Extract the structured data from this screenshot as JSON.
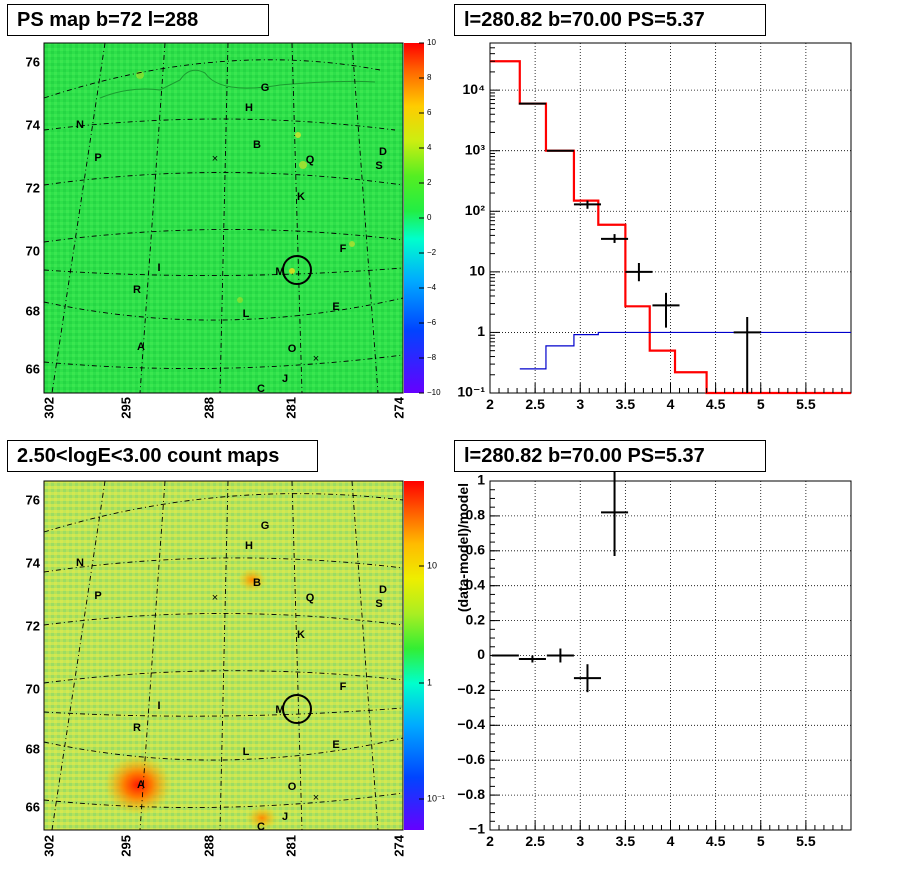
{
  "panels": {
    "ps_map_title": "PS map b=72 l=288",
    "spectrum_title": "l=280.82 b=70.00 PS=5.37",
    "count_map_title": "2.50<logE<3.00 count maps",
    "residual_title": "l=280.82 b=70.00 PS=5.37"
  },
  "colors": {
    "map_green": "#2ee04a",
    "count_yellow": "#bfe55a",
    "model_red": "#ff0000",
    "background_blue": "#0000cc",
    "data_black": "#000000"
  },
  "chart_data": [
    {
      "type": "heatmap",
      "title": "PS map b=72 l=288",
      "x_ticks": [
        "302",
        "295",
        "288",
        "281",
        "274"
      ],
      "y_ticks": [
        "76",
        "74",
        "72",
        "70",
        "68",
        "66"
      ],
      "colorbar_ticks": [
        "10",
        "8",
        "6",
        "4",
        "2",
        "0",
        "−2",
        "−4",
        "−6",
        "−8",
        "−10"
      ],
      "colorbar_range": [
        -10,
        10
      ],
      "source_labels": [
        "G",
        "H",
        "N",
        "B",
        "Q",
        "D",
        "P",
        "S",
        "K",
        "F",
        "I",
        "M",
        "R",
        "L",
        "E",
        "A",
        "O",
        "J",
        "C"
      ],
      "highlighted_source": "M"
    },
    {
      "type": "line",
      "title": "l=280.82 b=70.00 PS=5.37",
      "x_ticks": [
        "2",
        "2.5",
        "3",
        "3.5",
        "4",
        "4.5",
        "5",
        "5.5"
      ],
      "y_scale": "log",
      "y_ticks": [
        "10⁻¹",
        "1",
        "10",
        "10²",
        "10³",
        "10⁴"
      ],
      "xlim": [
        2,
        6
      ],
      "ylim": [
        0.1,
        60000
      ],
      "grid": true,
      "series": [
        {
          "style": "step",
          "color": "#ff0000",
          "bin_edges": [
            2.0,
            2.33,
            2.62,
            2.93,
            3.2,
            3.5,
            3.77,
            4.05,
            4.4,
            6.0
          ],
          "values": [
            30000,
            6000,
            1000,
            150,
            60,
            2.7,
            0.5,
            0.22,
            0.1
          ]
        },
        {
          "style": "step",
          "color": "#0000cc",
          "bin_edges": [
            2.33,
            2.62,
            2.93,
            3.2,
            6.0
          ],
          "values": [
            0.25,
            0.6,
            0.92,
            1.0
          ]
        },
        {
          "style": "errorbar",
          "color": "#000000",
          "x": [
            2.47,
            2.78,
            3.08,
            3.38,
            3.65,
            3.95,
            4.85
          ],
          "xerr": [
            0.15,
            0.15,
            0.15,
            0.15,
            0.15,
            0.15,
            0.15
          ],
          "y": [
            6000,
            1000,
            130,
            35,
            10,
            2.8,
            1.0
          ],
          "ylow": [
            6000,
            1000,
            110,
            30,
            7,
            1.2,
            0.1
          ],
          "yhigh": [
            6000,
            1000,
            150,
            42,
            14,
            4.5,
            1.8
          ]
        }
      ]
    },
    {
      "type": "heatmap",
      "title": "2.50<logE<3.00 count maps",
      "x_ticks": [
        "302",
        "295",
        "288",
        "281",
        "274"
      ],
      "y_ticks": [
        "76",
        "74",
        "72",
        "70",
        "68",
        "66"
      ],
      "colorbar_ticks": [
        "10",
        "1",
        "10⁻¹"
      ],
      "colorbar_scale": "log",
      "source_labels": [
        "G",
        "H",
        "N",
        "B",
        "Q",
        "D",
        "P",
        "S",
        "K",
        "F",
        "I",
        "M",
        "R",
        "L",
        "E",
        "A",
        "O",
        "J",
        "C"
      ],
      "highlighted_source": "M"
    },
    {
      "type": "scatter",
      "title": "l=280.82 b=70.00 PS=5.37",
      "ylabel": "(data-model)/model",
      "x_ticks": [
        "2",
        "2.5",
        "3",
        "3.5",
        "4",
        "4.5",
        "5",
        "5.5"
      ],
      "y_ticks": [
        "1",
        "0.8",
        "0.6",
        "0.4",
        "0.2",
        "0",
        "−0.2",
        "−0.4",
        "−0.6",
        "−0.8",
        "−1"
      ],
      "xlim": [
        2,
        6
      ],
      "ylim": [
        -1,
        1
      ],
      "grid": true,
      "points": [
        {
          "x": 2.17,
          "y": 0.0,
          "xerr": 0.15,
          "yerr": 0.005
        },
        {
          "x": 2.47,
          "y": -0.02,
          "xerr": 0.15,
          "yerr": 0.02
        },
        {
          "x": 2.78,
          "y": 0.0,
          "xerr": 0.15,
          "yerr": 0.04
        },
        {
          "x": 3.08,
          "y": -0.13,
          "xerr": 0.15,
          "yerr": 0.08
        },
        {
          "x": 3.38,
          "y": 0.82,
          "xerr": 0.15,
          "yerr": 0.25
        }
      ]
    }
  ]
}
